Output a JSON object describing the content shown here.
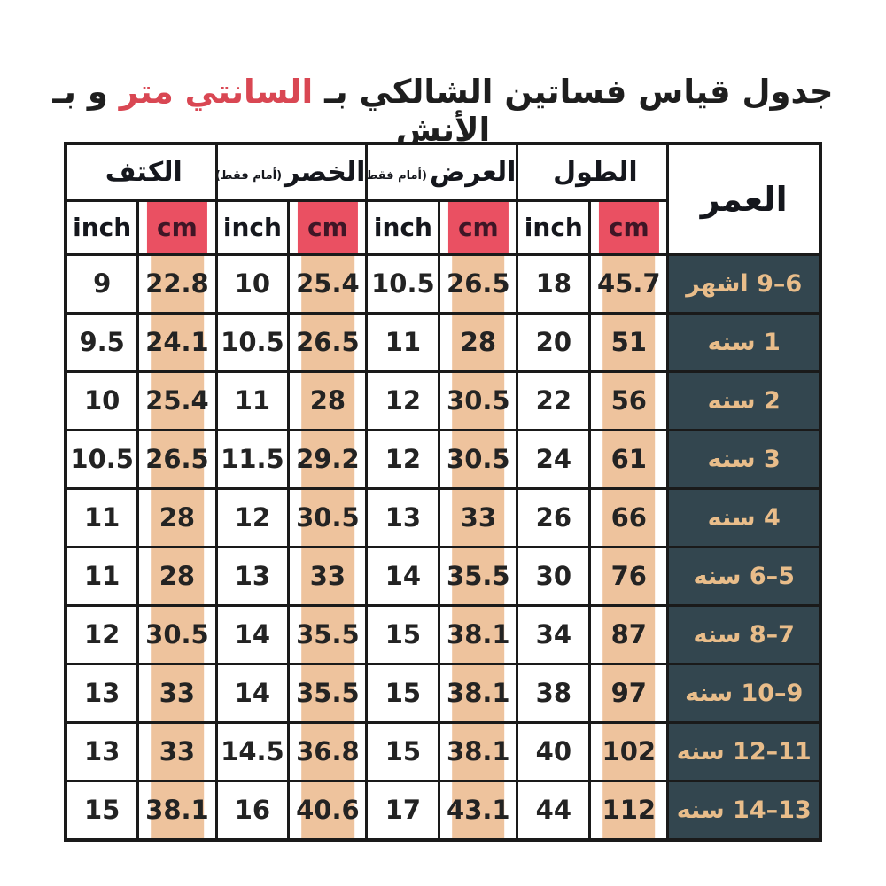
{
  "title": {
    "prefix": "جدول قياس فساتين الشالكي بـ",
    "highlight": "السانتي متر",
    "suffix": "و بـ الأنش"
  },
  "colors": {
    "cm_header_bg": "#ea5062",
    "cm_header_text": "#3f1626",
    "cm_value_bg": "#eec39d",
    "age_cell_bg": "#33464f",
    "age_cell_text": "#e9bd8a",
    "title_highlight": "#d94753",
    "border": "#1a1a1a",
    "background": "#ffffff"
  },
  "table": {
    "age_header": "العمر",
    "units": {
      "inch": "inch",
      "cm": "cm"
    },
    "groups": [
      {
        "label": "الطول",
        "note": ""
      },
      {
        "label": "العرض",
        "note": "(أمام فقط)"
      },
      {
        "label": "الخصر",
        "note": "(أمام فقط)"
      },
      {
        "label": "الكتف",
        "note": ""
      }
    ]
  },
  "chart_data": {
    "type": "table",
    "title": "جدول قياس فساتين الشالكي بـ السانتي متر و بـ الأنش",
    "column_groups": [
      "العمر",
      "الطول",
      "العرض (أمام فقط)",
      "الخصر (أمام فقط)",
      "الكتف"
    ],
    "units": [
      "inch",
      "cm"
    ],
    "rows": [
      {
        "age": "6–9 اشهر",
        "length": {
          "inch": 18,
          "cm": 45.7
        },
        "width": {
          "inch": 10.5,
          "cm": 26.5
        },
        "waist": {
          "inch": 10,
          "cm": 25.4
        },
        "shoulder": {
          "inch": 9,
          "cm": 22.8
        }
      },
      {
        "age": "1 سنه",
        "length": {
          "inch": 20,
          "cm": 51
        },
        "width": {
          "inch": 11,
          "cm": 28
        },
        "waist": {
          "inch": 10.5,
          "cm": 26.5
        },
        "shoulder": {
          "inch": 9.5,
          "cm": 24.1
        }
      },
      {
        "age": "2 سنه",
        "length": {
          "inch": 22,
          "cm": 56
        },
        "width": {
          "inch": 12,
          "cm": 30.5
        },
        "waist": {
          "inch": 11,
          "cm": 28
        },
        "shoulder": {
          "inch": 10,
          "cm": 25.4
        }
      },
      {
        "age": "3 سنه",
        "length": {
          "inch": 24,
          "cm": 61
        },
        "width": {
          "inch": 12,
          "cm": 30.5
        },
        "waist": {
          "inch": 11.5,
          "cm": 29.2
        },
        "shoulder": {
          "inch": 10.5,
          "cm": 26.5
        }
      },
      {
        "age": "4 سنه",
        "length": {
          "inch": 26,
          "cm": 66
        },
        "width": {
          "inch": 13,
          "cm": 33
        },
        "waist": {
          "inch": 12,
          "cm": 30.5
        },
        "shoulder": {
          "inch": 11,
          "cm": 28
        }
      },
      {
        "age": "5–6 سنه",
        "length": {
          "inch": 30,
          "cm": 76
        },
        "width": {
          "inch": 14,
          "cm": 35.5
        },
        "waist": {
          "inch": 13,
          "cm": 33
        },
        "shoulder": {
          "inch": 11,
          "cm": 28
        }
      },
      {
        "age": "7–8 سنه",
        "length": {
          "inch": 34,
          "cm": 87
        },
        "width": {
          "inch": 15,
          "cm": 38.1
        },
        "waist": {
          "inch": 14,
          "cm": 35.5
        },
        "shoulder": {
          "inch": 12,
          "cm": 30.5
        }
      },
      {
        "age": "9–10 سنه",
        "length": {
          "inch": 38,
          "cm": 97
        },
        "width": {
          "inch": 15,
          "cm": 38.1
        },
        "waist": {
          "inch": 14,
          "cm": 35.5
        },
        "shoulder": {
          "inch": 13,
          "cm": 33
        }
      },
      {
        "age": "11–12 سنه",
        "length": {
          "inch": 40,
          "cm": 102
        },
        "width": {
          "inch": 15,
          "cm": 38.1
        },
        "waist": {
          "inch": 14.5,
          "cm": 36.8
        },
        "shoulder": {
          "inch": 13,
          "cm": 33
        }
      },
      {
        "age": "13–14 سنه",
        "length": {
          "inch": 44,
          "cm": 112
        },
        "width": {
          "inch": 17,
          "cm": 43.1
        },
        "waist": {
          "inch": 16,
          "cm": 40.6
        },
        "shoulder": {
          "inch": 15,
          "cm": 38.1
        }
      }
    ]
  }
}
